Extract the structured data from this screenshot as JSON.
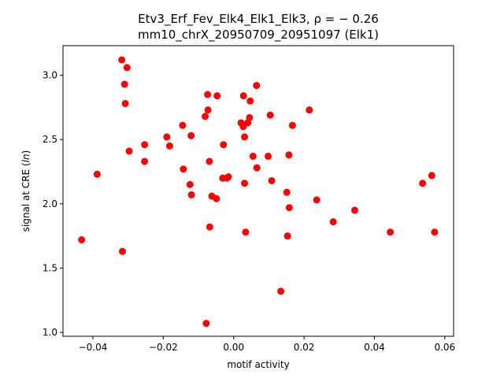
{
  "chart_data": {
    "type": "scatter",
    "title": "Etv3_Erf_Fev_Elk4_Elk1_Elk3, ρ = − 0.26",
    "subtitle": "mm10_chrX_20950709_20951097 (Elk1)",
    "xlabel": "motif activity",
    "ylabel_prefix": "signal at CRE (",
    "ylabel_italic": "ln",
    "ylabel_suffix": ")",
    "xlim": [
      -0.0485,
      0.0625
    ],
    "ylim": [
      0.97,
      3.23
    ],
    "x_ticks": [
      -0.04,
      -0.02,
      0.0,
      0.02,
      0.04,
      0.06
    ],
    "x_tick_labels": [
      "−0.04",
      "−0.02",
      "0.00",
      "0.02",
      "0.04",
      "0.06"
    ],
    "y_ticks": [
      1.0,
      1.5,
      2.0,
      2.5,
      3.0
    ],
    "y_tick_labels": [
      "1.0",
      "1.5",
      "2.0",
      "2.5",
      "3.0"
    ],
    "grid": false,
    "legend": "none",
    "marker_color": "#ff0000",
    "points": [
      {
        "x": -0.0432,
        "y": 1.72
      },
      {
        "x": -0.0388,
        "y": 2.23
      },
      {
        "x": -0.0318,
        "y": 3.12
      },
      {
        "x": -0.0316,
        "y": 1.63
      },
      {
        "x": -0.031,
        "y": 2.93
      },
      {
        "x": -0.0308,
        "y": 2.78
      },
      {
        "x": -0.0303,
        "y": 3.06
      },
      {
        "x": -0.0297,
        "y": 2.41
      },
      {
        "x": -0.0253,
        "y": 2.46
      },
      {
        "x": -0.0253,
        "y": 2.33
      },
      {
        "x": -0.019,
        "y": 2.52
      },
      {
        "x": -0.0182,
        "y": 2.45
      },
      {
        "x": -0.0145,
        "y": 2.61
      },
      {
        "x": -0.0143,
        "y": 2.27
      },
      {
        "x": -0.0124,
        "y": 2.15
      },
      {
        "x": -0.0121,
        "y": 2.53
      },
      {
        "x": -0.012,
        "y": 2.07
      },
      {
        "x": -0.0081,
        "y": 2.68
      },
      {
        "x": -0.0078,
        "y": 1.07
      },
      {
        "x": -0.0074,
        "y": 2.85
      },
      {
        "x": -0.0073,
        "y": 2.73
      },
      {
        "x": -0.0069,
        "y": 2.33
      },
      {
        "x": -0.0068,
        "y": 1.82
      },
      {
        "x": -0.0062,
        "y": 2.06
      },
      {
        "x": -0.0049,
        "y": 2.04
      },
      {
        "x": -0.0047,
        "y": 2.84
      },
      {
        "x": -0.0031,
        "y": 2.2
      },
      {
        "x": -0.0029,
        "y": 2.46
      },
      {
        "x": -0.0019,
        "y": 2.2
      },
      {
        "x": -0.0015,
        "y": 2.21
      },
      {
        "x": 0.0021,
        "y": 2.63
      },
      {
        "x": 0.0027,
        "y": 2.6
      },
      {
        "x": 0.0028,
        "y": 2.84
      },
      {
        "x": 0.0031,
        "y": 2.52
      },
      {
        "x": 0.0031,
        "y": 2.16
      },
      {
        "x": 0.0034,
        "y": 1.78
      },
      {
        "x": 0.004,
        "y": 2.63
      },
      {
        "x": 0.0045,
        "y": 2.67
      },
      {
        "x": 0.0047,
        "y": 2.8
      },
      {
        "x": 0.0055,
        "y": 2.37
      },
      {
        "x": 0.0065,
        "y": 2.92
      },
      {
        "x": 0.0066,
        "y": 2.28
      },
      {
        "x": 0.0098,
        "y": 2.37
      },
      {
        "x": 0.0104,
        "y": 2.69
      },
      {
        "x": 0.0108,
        "y": 2.18
      },
      {
        "x": 0.0134,
        "y": 1.32
      },
      {
        "x": 0.0151,
        "y": 2.09
      },
      {
        "x": 0.0153,
        "y": 1.75
      },
      {
        "x": 0.0157,
        "y": 2.38
      },
      {
        "x": 0.0158,
        "y": 1.97
      },
      {
        "x": 0.0167,
        "y": 2.61
      },
      {
        "x": 0.0215,
        "y": 2.73
      },
      {
        "x": 0.0236,
        "y": 2.03
      },
      {
        "x": 0.0283,
        "y": 1.86
      },
      {
        "x": 0.0344,
        "y": 1.95
      },
      {
        "x": 0.0445,
        "y": 1.78
      },
      {
        "x": 0.0537,
        "y": 2.16
      },
      {
        "x": 0.0563,
        "y": 2.22
      },
      {
        "x": 0.0571,
        "y": 1.78
      }
    ]
  }
}
